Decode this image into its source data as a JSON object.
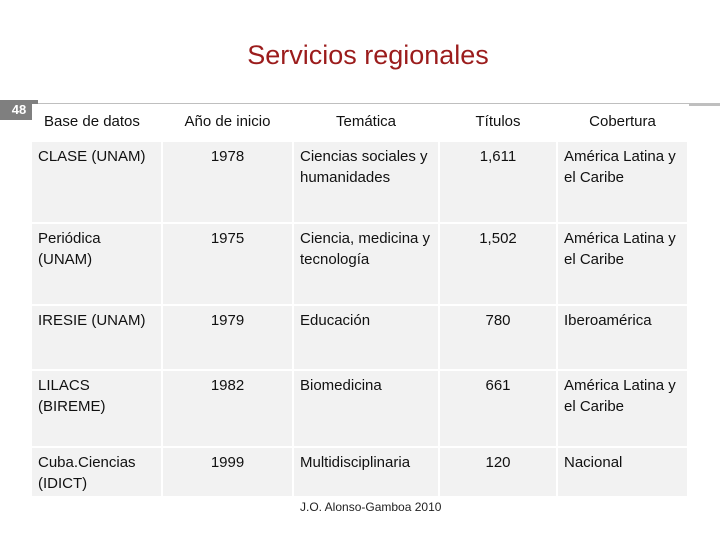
{
  "title": "Servicios regionales",
  "slide_number": "48",
  "table": {
    "headers": [
      "Base de datos",
      "Año de inicio",
      "Temática",
      "Títulos",
      "Cobertura"
    ],
    "rows": [
      {
        "base": "CLASE (UNAM)",
        "inicio": "1978",
        "tematica": "Ciencias sociales y humanidades",
        "titulos": "1,611",
        "cobertura": "América Latina y el Caribe"
      },
      {
        "base": "Periódica (UNAM)",
        "inicio": "1975",
        "tematica": "Ciencia, medicina y tecnología",
        "titulos": "1,502",
        "cobertura": "América Latina y el Caribe"
      },
      {
        "base": "IRESIE (UNAM)",
        "inicio": "1979",
        "tematica": "Educación",
        "titulos": "780",
        "cobertura": "Iberoamérica"
      },
      {
        "base": "LILACS (BIREME)",
        "inicio": "1982",
        "tematica": "Biomedicina",
        "titulos": "661",
        "cobertura": "América Latina y el Caribe"
      },
      {
        "base": "Cuba.Ciencias (IDICT)",
        "inicio": "1999",
        "tematica": "Multidisciplinaria",
        "titulos": "120",
        "cobertura": "Nacional"
      }
    ]
  },
  "footer": "J.O. Alonso-Gamboa 2010"
}
